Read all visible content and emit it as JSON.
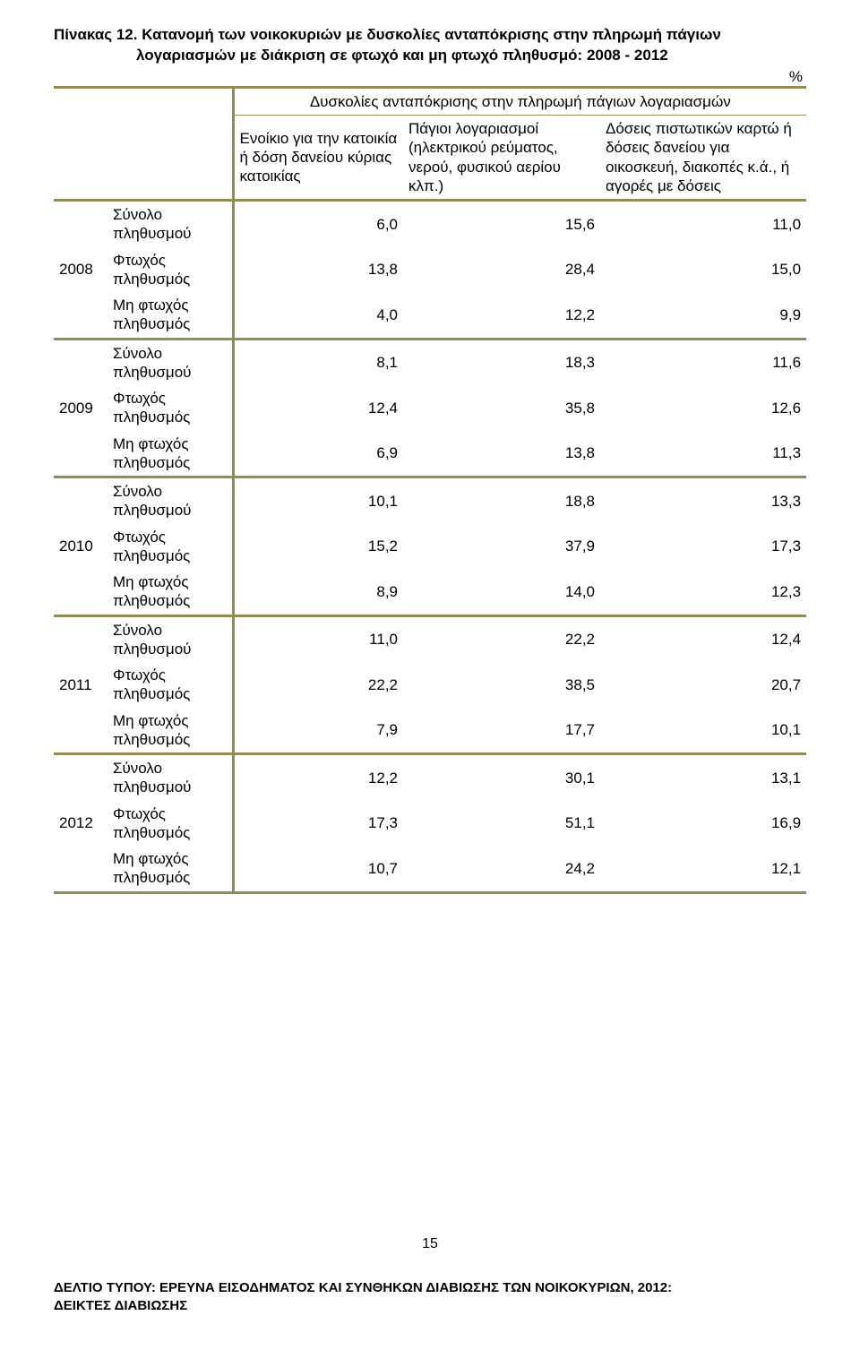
{
  "colors": {
    "olive": "#948a54",
    "text": "#000000",
    "background": "#ffffff"
  },
  "title": {
    "line1": "Πίνακας 12. Κατανομή των νοικοκυριών με δυσκολίες ανταπόκρισης στην πληρωμή πάγιων",
    "line2": "λογαριασμών με διάκριση σε φτωχό και μη φτωχό πληθυσμό: 2008 - 2012"
  },
  "percent_symbol": "%",
  "super_header": "Δυσκολίες ανταπόκρισης στην πληρωμή πάγιων λογαριασμών",
  "col_headers": {
    "c1": "Ενοίκιο για την κατοικία ή δόση δανείου κύριας κατοικίας",
    "c2": "Πάγιοι λογαριασμοί (ηλεκτρικού ρεύματος, νερού, φυσικού αερίου κλπ.)",
    "c3": "Δόσεις πιστωτικών καρτώ ή δόσεις δανείου για οικοσκευή, διακοπές κ.ά., ή αγορές με δόσεις"
  },
  "row_labels": {
    "total": "Σύνολο πληθυσμού",
    "poor": "Φτωχός πληθυσμός",
    "nonpoor": "Μη φτωχός πληθυσμός"
  },
  "years": [
    {
      "year": "2008",
      "rows": [
        {
          "kind": "total",
          "v": [
            "6,0",
            "15,6",
            "11,0"
          ]
        },
        {
          "kind": "poor",
          "v": [
            "13,8",
            "28,4",
            "15,0"
          ]
        },
        {
          "kind": "nonpoor",
          "v": [
            "4,0",
            "12,2",
            "9,9"
          ]
        }
      ]
    },
    {
      "year": "2009",
      "rows": [
        {
          "kind": "total",
          "v": [
            "8,1",
            "18,3",
            "11,6"
          ]
        },
        {
          "kind": "poor",
          "v": [
            "12,4",
            "35,8",
            "12,6"
          ]
        },
        {
          "kind": "nonpoor",
          "v": [
            "6,9",
            "13,8",
            "11,3"
          ]
        }
      ]
    },
    {
      "year": "2010",
      "rows": [
        {
          "kind": "total",
          "v": [
            "10,1",
            "18,8",
            "13,3"
          ]
        },
        {
          "kind": "poor",
          "v": [
            "15,2",
            "37,9",
            "17,3"
          ]
        },
        {
          "kind": "nonpoor",
          "v": [
            "8,9",
            "14,0",
            "12,3"
          ]
        }
      ]
    },
    {
      "year": "2011",
      "rows": [
        {
          "kind": "total",
          "v": [
            "11,0",
            "22,2",
            "12,4"
          ]
        },
        {
          "kind": "poor",
          "v": [
            "22,2",
            "38,5",
            "20,7"
          ]
        },
        {
          "kind": "nonpoor",
          "v": [
            "7,9",
            "17,7",
            "10,1"
          ]
        }
      ]
    },
    {
      "year": "2012",
      "rows": [
        {
          "kind": "total",
          "v": [
            "12,2",
            "30,1",
            "13,1"
          ]
        },
        {
          "kind": "poor",
          "v": [
            "17,3",
            "51,1",
            "16,9"
          ]
        },
        {
          "kind": "nonpoor",
          "v": [
            "10,7",
            "24,2",
            "12,1"
          ]
        }
      ]
    }
  ],
  "page_number": "15",
  "footer": {
    "line1": "ΔΕΛΤΙΟ ΤΥΠΟΥ:  ΕΡΕΥΝΑ ΕΙΣΟΔΗΜΑΤΟΣ ΚΑΙ ΣΥΝΘΗΚΩΝ ΔΙΑΒΙΩΣΗΣ ΤΩΝ ΝΟΙΚΟΚΥΡΙΩΝ, 2012:",
    "line2": "ΔΕΙΚΤΕΣ ΔΙΑΒΙΩΣΗΣ"
  }
}
